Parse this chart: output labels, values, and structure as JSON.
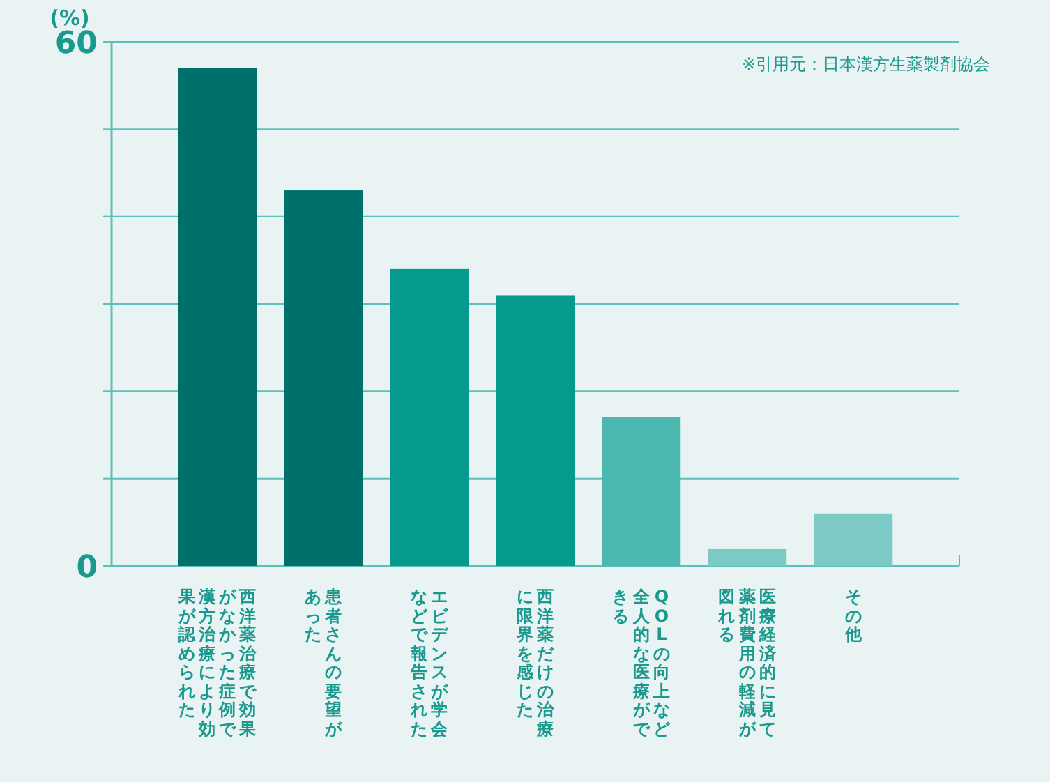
{
  "chart_data": {
    "type": "bar",
    "ylabel": "(%)",
    "categories": [
      "西洋薬治療で効果がなかった症例で漢方治療により効果が認められた",
      "患者さんの要望があった",
      "エビデンスが学会などで報告された",
      "西洋薬だけの治療に限界を感じた",
      "QOLの向上など全人的な医療ができる",
      "医療経済的に見て薬剤費用の軽減が図れる",
      "その他"
    ],
    "values": [
      57,
      43,
      34,
      31,
      17,
      2,
      6
    ],
    "colors": [
      "#00706b",
      "#00706b",
      "#069a8e",
      "#069a8e",
      "#4db8b0",
      "#7ccac6",
      "#7ccac6"
    ],
    "ylim": [
      0,
      60
    ],
    "yticks": [
      0,
      {
        "value": 10,
        "label": null
      },
      {
        "value": 20,
        "label": null
      },
      {
        "value": 30,
        "label": null
      },
      {
        "value": 40,
        "label": null
      },
      {
        "value": 50,
        "label": null
      },
      60
    ],
    "grid": "y",
    "annotations": [
      "※引用元：日本漢方生薬製剤協会"
    ]
  }
}
